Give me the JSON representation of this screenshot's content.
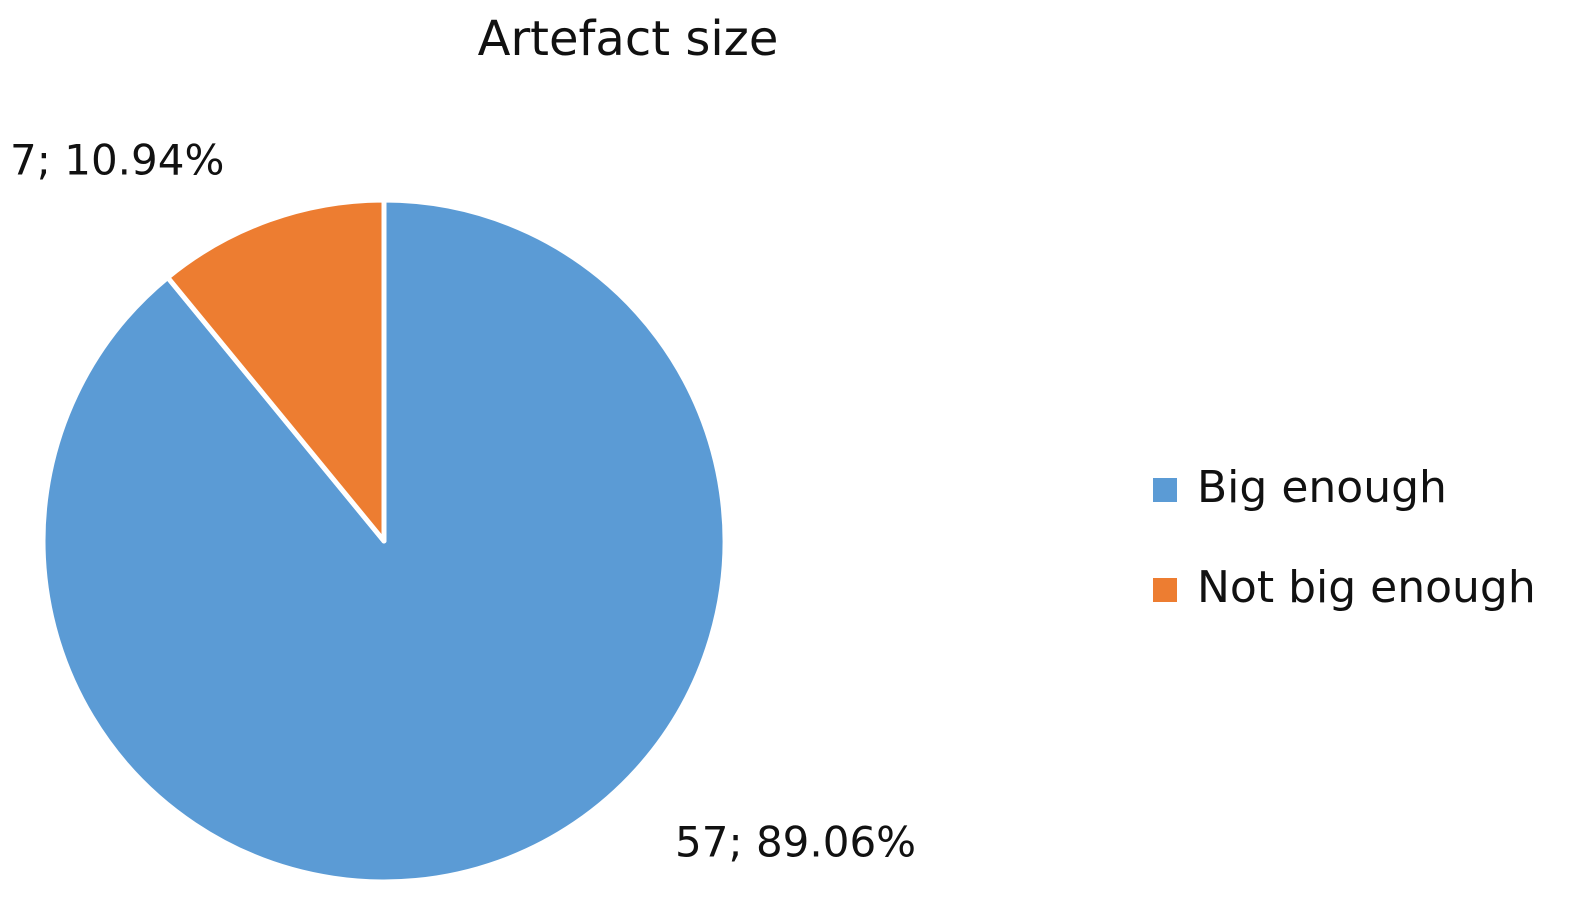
{
  "chart_data": {
    "type": "pie",
    "title": "Artefact size",
    "categories": [
      "Big enough",
      "Not big enough"
    ],
    "values": [
      57,
      7
    ],
    "value_labels": [
      "57; 89.06%",
      "7; 10.94%"
    ],
    "colors": [
      "#5b9bd5",
      "#ed7d31"
    ],
    "legend": "right"
  }
}
